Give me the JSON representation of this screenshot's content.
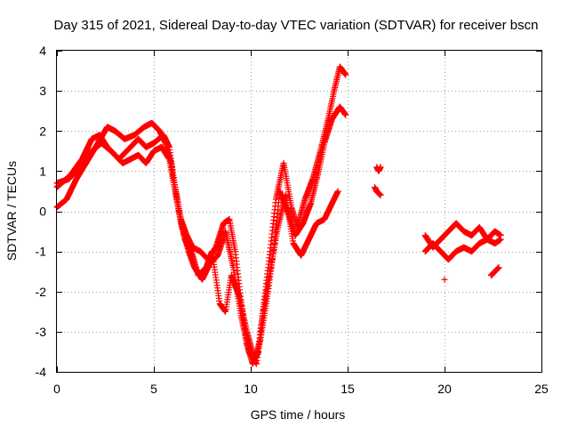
{
  "chart_data": {
    "type": "scatter",
    "title": "Day 315 of 2021, Sidereal Day-to-day VTEC variation (SDTVAR) for receiver bscn",
    "xlabel": "GPS time / hours",
    "ylabel": "SDTVAR / TECUs",
    "xlim": [
      0,
      25
    ],
    "ylim": [
      -4,
      4
    ],
    "xticks": [
      0,
      5,
      10,
      15,
      20,
      25
    ],
    "yticks": [
      -4,
      -3,
      -2,
      -1,
      0,
      1,
      2,
      3,
      4
    ],
    "grid": true,
    "marker": "+",
    "color": "#ff0000",
    "tracks": [
      [
        [
          0.0,
          0.1
        ],
        [
          0.5,
          0.3
        ],
        [
          1.0,
          0.8
        ],
        [
          1.5,
          1.2
        ],
        [
          2.0,
          1.6
        ],
        [
          2.6,
          2.1
        ],
        [
          3.0,
          2.0
        ],
        [
          3.5,
          1.8
        ],
        [
          4.0,
          1.9
        ],
        [
          4.5,
          2.1
        ],
        [
          4.9,
          2.2
        ],
        [
          5.3,
          2.0
        ],
        [
          5.6,
          1.7
        ],
        [
          5.9,
          1.2
        ],
        [
          6.1,
          0.6
        ],
        [
          6.4,
          -0.2
        ],
        [
          6.7,
          -0.6
        ],
        [
          7.0,
          -0.9
        ],
        [
          7.4,
          -1.0
        ],
        [
          7.8,
          -1.2
        ],
        [
          8.2,
          -0.9
        ],
        [
          8.6,
          -0.3
        ],
        [
          8.9,
          -0.2
        ],
        [
          9.2,
          -1.0
        ],
        [
          9.5,
          -2.2
        ],
        [
          9.8,
          -3.3
        ],
        [
          10.1,
          -3.8
        ],
        [
          10.4,
          -3.5
        ],
        [
          10.7,
          -2.2
        ],
        [
          11.0,
          -1.0
        ],
        [
          11.3,
          0.3
        ],
        [
          11.7,
          1.2
        ],
        [
          12.1,
          0.1
        ],
        [
          12.4,
          -0.4
        ],
        [
          12.8,
          0.3
        ],
        [
          13.2,
          0.8
        ],
        [
          13.6,
          1.5
        ],
        [
          14.0,
          2.3
        ],
        [
          14.3,
          3.0
        ],
        [
          14.6,
          3.6
        ],
        [
          14.9,
          3.4
        ]
      ],
      [
        [
          0.0,
          0.7
        ],
        [
          0.6,
          0.8
        ],
        [
          1.2,
          1.1
        ],
        [
          1.8,
          1.5
        ],
        [
          2.3,
          1.7
        ],
        [
          2.8,
          1.5
        ],
        [
          3.2,
          1.3
        ],
        [
          3.8,
          1.6
        ],
        [
          4.2,
          1.8
        ],
        [
          4.6,
          1.6
        ],
        [
          5.0,
          1.7
        ],
        [
          5.5,
          1.9
        ],
        [
          5.8,
          1.6
        ],
        [
          6.0,
          0.9
        ],
        [
          6.3,
          0.0
        ],
        [
          6.6,
          -0.7
        ],
        [
          7.0,
          -1.1
        ],
        [
          7.3,
          -1.6
        ],
        [
          7.7,
          -1.4
        ],
        [
          8.0,
          -1.0
        ],
        [
          8.4,
          -2.3
        ],
        [
          8.7,
          -2.5
        ],
        [
          9.0,
          -1.6
        ],
        [
          9.4,
          -2.1
        ],
        [
          9.8,
          -3.0
        ],
        [
          10.2,
          -3.7
        ],
        [
          10.5,
          -3.2
        ],
        [
          10.9,
          -2.0
        ],
        [
          11.2,
          -0.9
        ],
        [
          11.5,
          0.5
        ],
        [
          11.9,
          0.0
        ],
        [
          12.3,
          -0.6
        ],
        [
          12.7,
          -0.3
        ],
        [
          13.1,
          0.2
        ],
        [
          13.5,
          1.0
        ],
        [
          13.8,
          1.7
        ],
        [
          14.2,
          2.3
        ],
        [
          14.6,
          2.6
        ],
        [
          14.9,
          2.4
        ]
      ],
      [
        [
          0.0,
          0.6
        ],
        [
          0.7,
          0.9
        ],
        [
          1.3,
          1.3
        ],
        [
          1.8,
          1.8
        ],
        [
          2.2,
          1.9
        ],
        [
          2.6,
          1.6
        ],
        [
          3.0,
          1.4
        ],
        [
          3.4,
          1.2
        ],
        [
          3.8,
          1.3
        ],
        [
          4.2,
          1.4
        ],
        [
          4.6,
          1.2
        ],
        [
          5.0,
          1.5
        ],
        [
          5.4,
          1.6
        ],
        [
          5.8,
          1.3
        ],
        [
          6.1,
          0.5
        ],
        [
          6.4,
          -0.3
        ],
        [
          6.8,
          -1.0
        ],
        [
          7.1,
          -1.4
        ],
        [
          7.5,
          -1.7
        ],
        [
          7.9,
          -1.3
        ],
        [
          8.3,
          -1.1
        ],
        [
          8.7,
          -0.5
        ],
        [
          9.1,
          -1.4
        ],
        [
          9.5,
          -2.6
        ],
        [
          9.9,
          -3.5
        ],
        [
          10.3,
          -3.8
        ],
        [
          10.6,
          -2.6
        ],
        [
          11.0,
          -1.5
        ],
        [
          11.4,
          -0.4
        ],
        [
          11.8,
          0.4
        ],
        [
          12.2,
          -0.8
        ],
        [
          12.6,
          -1.1
        ],
        [
          13.0,
          -0.7
        ],
        [
          13.4,
          -0.3
        ],
        [
          13.8,
          -0.2
        ],
        [
          14.2,
          0.2
        ],
        [
          14.5,
          0.5
        ]
      ],
      [
        [
          16.5,
          1.1
        ],
        [
          16.6,
          1.0
        ],
        [
          16.7,
          1.1
        ]
      ],
      [
        [
          16.4,
          0.6
        ],
        [
          16.5,
          0.5
        ],
        [
          16.7,
          0.4
        ]
      ],
      [
        [
          19.0,
          -0.6
        ],
        [
          19.4,
          -0.9
        ],
        [
          19.8,
          -0.7
        ],
        [
          20.2,
          -0.5
        ],
        [
          20.6,
          -0.3
        ],
        [
          21.0,
          -0.5
        ],
        [
          21.4,
          -0.6
        ],
        [
          21.8,
          -0.4
        ],
        [
          22.2,
          -0.7
        ],
        [
          22.6,
          -0.5
        ],
        [
          22.9,
          -0.6
        ]
      ],
      [
        [
          19.0,
          -1.0
        ],
        [
          19.4,
          -0.8
        ],
        [
          19.8,
          -1.0
        ],
        [
          20.2,
          -1.2
        ],
        [
          20.6,
          -1.0
        ],
        [
          21.0,
          -0.9
        ],
        [
          21.4,
          -1.0
        ],
        [
          21.8,
          -0.8
        ],
        [
          22.2,
          -0.7
        ],
        [
          22.6,
          -0.8
        ],
        [
          22.9,
          -0.7
        ]
      ],
      [
        [
          20.0,
          -1.7
        ]
      ],
      [
        [
          22.4,
          -1.6
        ],
        [
          22.6,
          -1.5
        ],
        [
          22.8,
          -1.4
        ]
      ]
    ]
  }
}
